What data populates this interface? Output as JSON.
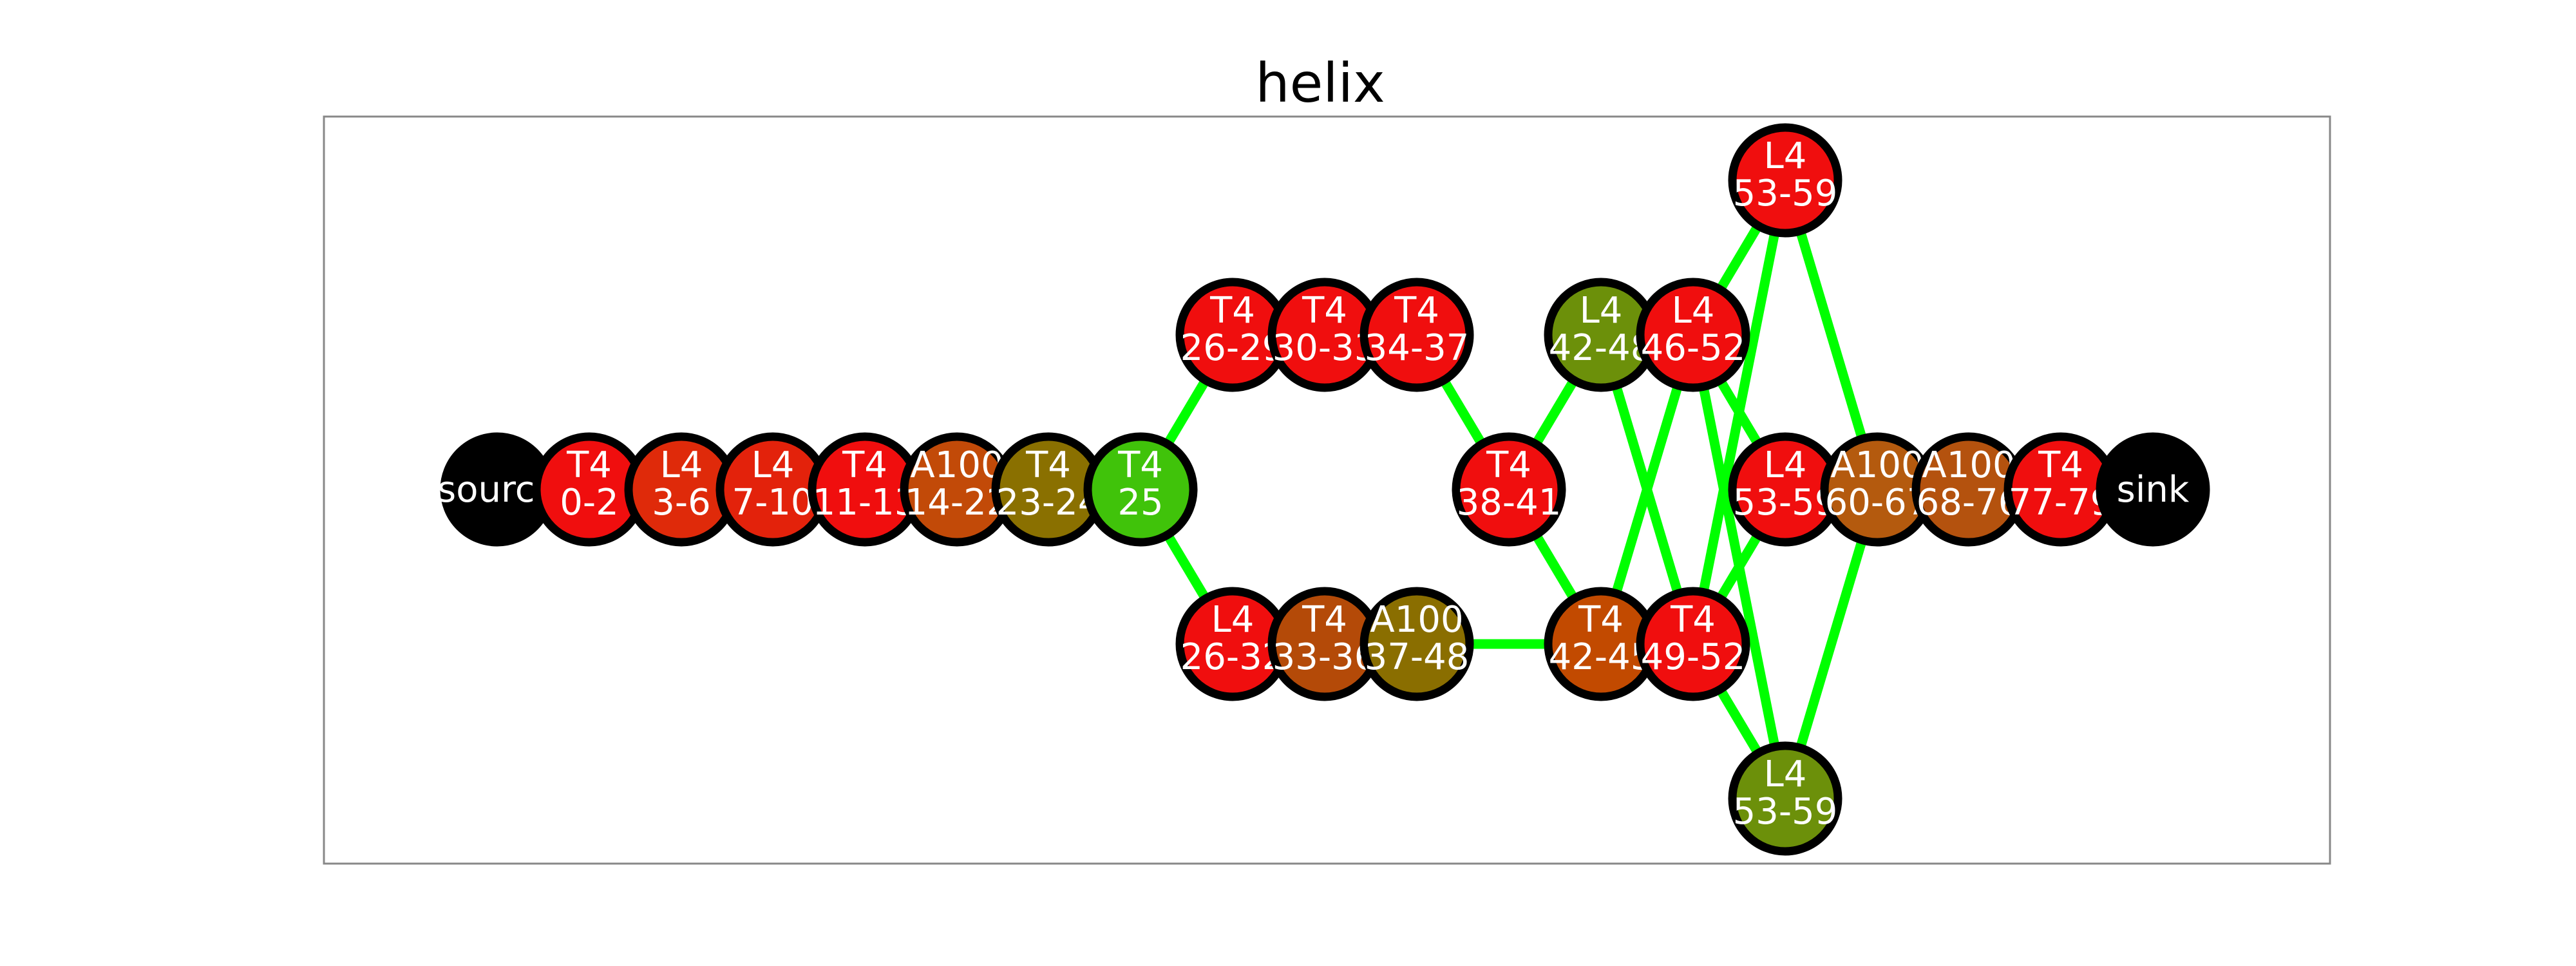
{
  "title": "helix",
  "colors": {
    "edge": "#00ff00",
    "outline": "#000000",
    "frame": "#888888",
    "label": "#ffffff"
  },
  "nodes": [
    {
      "id": "source",
      "lines": [
        "source"
      ],
      "color": "#000000"
    },
    {
      "id": "n1",
      "lines": [
        "T4",
        "0-2"
      ],
      "color": "#f00e0e"
    },
    {
      "id": "n2",
      "lines": [
        "L4",
        "3-6"
      ],
      "color": "#df2a0a"
    },
    {
      "id": "n3",
      "lines": [
        "L4",
        "7-10"
      ],
      "color": "#e3220b"
    },
    {
      "id": "n4",
      "lines": [
        "T4",
        "11-13"
      ],
      "color": "#f00e0e"
    },
    {
      "id": "n5",
      "lines": [
        "A100",
        "14-22"
      ],
      "color": "#c24a08"
    },
    {
      "id": "n6",
      "lines": [
        "T4",
        "23-24"
      ],
      "color": "#8a7000"
    },
    {
      "id": "n7",
      "lines": [
        "T4",
        "25"
      ],
      "color": "#40c30a"
    },
    {
      "id": "n8",
      "lines": [
        "T4",
        "26-29"
      ],
      "color": "#f00e0e"
    },
    {
      "id": "n9",
      "lines": [
        "T4",
        "30-33"
      ],
      "color": "#f00e0e"
    },
    {
      "id": "n10",
      "lines": [
        "T4",
        "34-37"
      ],
      "color": "#f00e0e"
    },
    {
      "id": "n11",
      "lines": [
        "L4",
        "26-32"
      ],
      "color": "#f00e0e"
    },
    {
      "id": "n12",
      "lines": [
        "T4",
        "33-36"
      ],
      "color": "#b44a08"
    },
    {
      "id": "n13",
      "lines": [
        "A100",
        "37-48"
      ],
      "color": "#8a6e00"
    },
    {
      "id": "n14",
      "lines": [
        "T4",
        "38-41"
      ],
      "color": "#f00e0e"
    },
    {
      "id": "n15",
      "lines": [
        "L4",
        "42-48"
      ],
      "color": "#6c900a"
    },
    {
      "id": "n16",
      "lines": [
        "L4",
        "46-52"
      ],
      "color": "#f00e0e"
    },
    {
      "id": "n17",
      "lines": [
        "T4",
        "42-45"
      ],
      "color": "#c24a00"
    },
    {
      "id": "n18",
      "lines": [
        "T4",
        "49-52"
      ],
      "color": "#f00e0e"
    },
    {
      "id": "n19",
      "lines": [
        "L4",
        "53-59"
      ],
      "color": "#f00e0e"
    },
    {
      "id": "n20",
      "lines": [
        "L4",
        "53-59"
      ],
      "color": "#f00e0e"
    },
    {
      "id": "n21",
      "lines": [
        "L4",
        "53-59"
      ],
      "color": "#6c900a"
    },
    {
      "id": "n22",
      "lines": [
        "A100",
        "60-67"
      ],
      "color": "#b45a0e"
    },
    {
      "id": "n23",
      "lines": [
        "A100",
        "68-76"
      ],
      "color": "#b4520e"
    },
    {
      "id": "n24",
      "lines": [
        "T4",
        "77-79"
      ],
      "color": "#f00e0e"
    },
    {
      "id": "sink",
      "lines": [
        "sink"
      ],
      "color": "#000000"
    }
  ],
  "edges": [
    [
      "n7",
      "n8"
    ],
    [
      "n7",
      "n11"
    ],
    [
      "n10",
      "n14"
    ],
    [
      "n13",
      "n17"
    ],
    [
      "n14",
      "n15"
    ],
    [
      "n14",
      "n17"
    ],
    [
      "n15",
      "n18"
    ],
    [
      "n16",
      "n17"
    ],
    [
      "n16",
      "n19"
    ],
    [
      "n16",
      "n20"
    ],
    [
      "n16",
      "n21"
    ],
    [
      "n18",
      "n19"
    ],
    [
      "n18",
      "n20"
    ],
    [
      "n18",
      "n21"
    ],
    [
      "n19",
      "n22"
    ],
    [
      "n21",
      "n22"
    ]
  ]
}
